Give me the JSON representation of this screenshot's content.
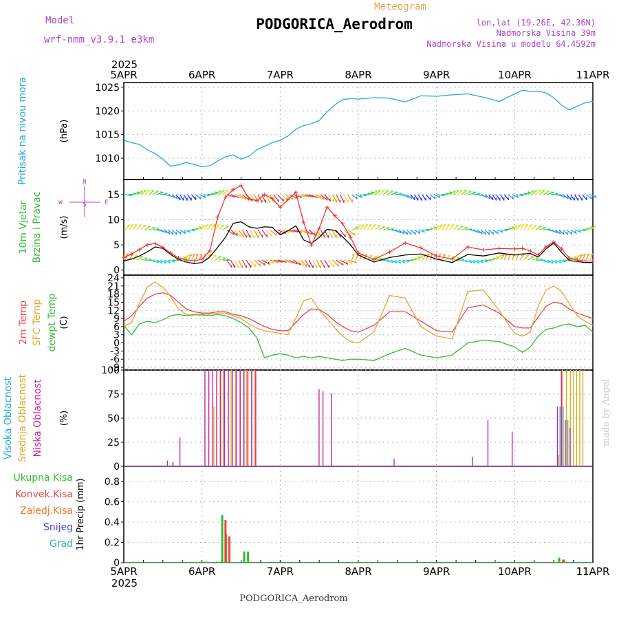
{
  "header": {
    "meteogram_label": "Meteogram",
    "station": "PODGORICA_Aerodrom",
    "model_label": "Model",
    "model_name": "wrf-nmm_v3.9.1 e3km",
    "lonlat": "lon,lat (19.26E, 42.36N)",
    "altitude": "Nadmorska Visina 39m",
    "model_altitude": "Nadmorska Visina u modelu 64.4592m"
  },
  "footer": {
    "station": "PODGORICA_Aerodrom",
    "credit": "made by Angel"
  },
  "time_axis": {
    "year": "2025",
    "ticks": [
      "5APR",
      "6APR",
      "7APR",
      "8APR",
      "9APR",
      "10APR",
      "11APR"
    ],
    "range_days": [
      0,
      6
    ]
  },
  "colors": {
    "pressure": "#22aadd",
    "wind_speed": "#000000",
    "wind_gust": "#ee3333",
    "t2m": "#ee4444",
    "sfc": "#ddaa33",
    "dew": "#33bb33",
    "high_cloud": "#22aacc",
    "mid_cloud": "#ddaa22",
    "low_cloud": "#cc2299",
    "total_precip": "#33bb33",
    "conv_precip": "#ee4444",
    "frz_precip": "#ee7722",
    "snow": "#4444dd",
    "grad": "#22bbaa",
    "wind_legend": "#aa44cc"
  },
  "chart_data": [
    {
      "type": "line",
      "panel": "pressure",
      "ylabel_lines": [
        "Pritisak na nivou mora"
      ],
      "unit": "(hPa)",
      "ylim": [
        1005.5,
        1026
      ],
      "yticks": [
        1010,
        1015,
        1020,
        1025
      ],
      "series": [
        {
          "name": "Pritisak na nivou mora",
          "x": [
            0,
            0.1,
            0.2,
            0.3,
            0.4,
            0.5,
            0.6,
            0.7,
            0.8,
            0.9,
            1.0,
            1.1,
            1.2,
            1.3,
            1.4,
            1.5,
            1.6,
            1.7,
            1.8,
            1.9,
            2.0,
            2.1,
            2.2,
            2.3,
            2.4,
            2.5,
            2.6,
            2.7,
            2.8,
            2.9,
            3.0,
            3.2,
            3.4,
            3.6,
            3.8,
            4.0,
            4.2,
            4.4,
            4.6,
            4.8,
            5.0,
            5.1,
            5.2,
            5.3,
            5.4,
            5.5,
            5.6,
            5.7,
            5.8,
            5.9,
            6.0
          ],
          "values": [
            1013.8,
            1013.3,
            1012.9,
            1011.8,
            1011.0,
            1009.8,
            1008.3,
            1008.6,
            1009.1,
            1008.7,
            1008.2,
            1008.4,
            1009.4,
            1010.3,
            1010.7,
            1009.8,
            1010.4,
            1011.8,
            1012.5,
            1013.3,
            1013.8,
            1014.7,
            1016.1,
            1016.9,
            1017.3,
            1018.0,
            1019.8,
            1021.3,
            1022.4,
            1022.6,
            1022.5,
            1022.8,
            1022.7,
            1021.9,
            1023.2,
            1023.1,
            1023.4,
            1023.6,
            1022.9,
            1022.0,
            1023.6,
            1024.4,
            1024.1,
            1024.2,
            1023.8,
            1022.8,
            1021.2,
            1020.2,
            1021.0,
            1021.7,
            1022.0
          ]
        }
      ]
    },
    {
      "type": "line",
      "panel": "wind",
      "ylabel_lines": [
        "10m Vjetar",
        "Brzina i Pravac"
      ],
      "unit": "(m/s)",
      "ylim": [
        -1,
        18
      ],
      "yticks": [
        0,
        5,
        10,
        15
      ],
      "direction_legend": {
        "north": "N",
        "south": "S",
        "west": "W",
        "east": "E"
      },
      "barb_rows": [
        15,
        8,
        2
      ],
      "series": [
        {
          "name": "Brzina vjetra",
          "x": [
            0,
            0.1,
            0.2,
            0.3,
            0.4,
            0.5,
            0.6,
            0.7,
            0.8,
            0.9,
            1.0,
            1.1,
            1.2,
            1.3,
            1.4,
            1.5,
            1.6,
            1.7,
            1.8,
            1.9,
            2.0,
            2.1,
            2.2,
            2.3,
            2.4,
            2.5,
            2.6,
            2.7,
            2.8,
            2.9,
            3.0,
            3.2,
            3.4,
            3.6,
            3.8,
            4.0,
            4.2,
            4.4,
            4.6,
            4.8,
            5.0,
            5.1,
            5.2,
            5.3,
            5.4,
            5.5,
            5.6,
            5.7,
            5.8,
            5.9,
            6.0
          ],
          "values": [
            1.8,
            2.2,
            2.8,
            3.6,
            4.6,
            4.3,
            3.1,
            2.1,
            1.6,
            1.3,
            1.5,
            2.6,
            4.5,
            6.5,
            9.3,
            9.6,
            8.6,
            8.3,
            8.6,
            8.5,
            7.0,
            7.8,
            8.8,
            6.0,
            5.3,
            6.5,
            8.1,
            7.9,
            6.6,
            5.0,
            3.0,
            1.6,
            2.5,
            3.0,
            3.2,
            2.2,
            1.5,
            3.1,
            2.8,
            3.4,
            3.0,
            3.2,
            3.3,
            2.6,
            4.2,
            5.4,
            3.5,
            1.9,
            1.7,
            1.5,
            1.5
          ]
        },
        {
          "name": "Udari vjetra",
          "x": [
            0,
            0.1,
            0.2,
            0.3,
            0.4,
            0.5,
            0.6,
            0.7,
            0.8,
            0.9,
            1.0,
            1.1,
            1.2,
            1.3,
            1.4,
            1.5,
            1.6,
            1.7,
            1.8,
            1.9,
            2.0,
            2.1,
            2.2,
            2.3,
            2.4,
            2.5,
            2.6,
            2.7,
            2.8,
            2.9,
            3.0,
            3.2,
            3.4,
            3.6,
            3.8,
            4.0,
            4.2,
            4.4,
            4.6,
            4.8,
            5.0,
            5.1,
            5.2,
            5.3,
            5.4,
            5.5,
            5.6,
            5.7,
            5.8,
            5.9,
            6.0
          ],
          "values": [
            2.5,
            3.2,
            4.1,
            5.0,
            5.3,
            4.5,
            3.4,
            2.4,
            2.0,
            1.8,
            2.2,
            3.8,
            10.5,
            14.5,
            16.0,
            16.8,
            14.2,
            13.8,
            15.0,
            14.2,
            12.5,
            14.0,
            15.5,
            9.5,
            5.0,
            8.3,
            12.5,
            10.8,
            9.2,
            6.5,
            3.4,
            2.1,
            3.6,
            5.4,
            4.4,
            2.8,
            2.2,
            4.6,
            4.0,
            4.3,
            4.2,
            4.3,
            3.8,
            3.0,
            4.6,
            5.6,
            4.2,
            2.4,
            2.0,
            1.8,
            1.8
          ]
        }
      ]
    },
    {
      "type": "line",
      "panel": "temperature",
      "ylabel_lines": [
        "2m Temp",
        "SFC Temp",
        "dewpt Temp"
      ],
      "unit": "(C)",
      "ylim": [
        -10,
        25
      ],
      "yticks": [
        -9,
        -6,
        -3,
        0,
        3,
        6,
        9,
        12,
        15,
        18,
        21,
        24
      ],
      "series": [
        {
          "name": "2m Temp",
          "x": [
            0,
            0.1,
            0.2,
            0.3,
            0.4,
            0.5,
            0.6,
            0.7,
            0.8,
            0.9,
            1.0,
            1.1,
            1.2,
            1.3,
            1.4,
            1.5,
            1.6,
            1.7,
            1.8,
            1.9,
            2.0,
            2.1,
            2.2,
            2.3,
            2.4,
            2.5,
            2.6,
            2.7,
            2.8,
            2.9,
            3.0,
            3.2,
            3.4,
            3.6,
            3.8,
            4.0,
            4.2,
            4.4,
            4.6,
            4.8,
            5.0,
            5.1,
            5.2,
            5.3,
            5.4,
            5.5,
            5.6,
            5.7,
            5.8,
            5.9,
            6.0
          ],
          "values": [
            8.0,
            10.0,
            13.5,
            16.5,
            18.0,
            18.5,
            17.5,
            15.0,
            12.5,
            11.5,
            11.0,
            11.0,
            11.5,
            11.5,
            10.5,
            10.0,
            9.0,
            7.5,
            6.0,
            5.0,
            4.5,
            4.5,
            7.5,
            10.5,
            12.5,
            12.3,
            10.5,
            8.0,
            6.0,
            4.5,
            4.0,
            6.5,
            11.5,
            11.5,
            8.0,
            4.5,
            4.0,
            13.0,
            14.0,
            11.0,
            6.0,
            5.5,
            5.5,
            9.5,
            13.5,
            15.0,
            14.5,
            12.5,
            11.0,
            10.0,
            9.0
          ]
        },
        {
          "name": "SFC Temp",
          "x": [
            0,
            0.1,
            0.2,
            0.3,
            0.4,
            0.5,
            0.6,
            0.7,
            0.8,
            0.9,
            1.0,
            1.1,
            1.2,
            1.3,
            1.4,
            1.5,
            1.6,
            1.7,
            1.8,
            1.9,
            2.0,
            2.1,
            2.2,
            2.3,
            2.4,
            2.5,
            2.6,
            2.7,
            2.8,
            2.9,
            3.0,
            3.2,
            3.4,
            3.6,
            3.8,
            4.0,
            4.2,
            4.4,
            4.6,
            4.8,
            5.0,
            5.1,
            5.2,
            5.3,
            5.4,
            5.5,
            5.6,
            5.7,
            5.8,
            5.9,
            6.0
          ],
          "values": [
            6.0,
            7.5,
            14.5,
            20.5,
            22.5,
            20.5,
            17.0,
            12.5,
            10.5,
            10.0,
            10.0,
            10.5,
            11.0,
            11.0,
            10.0,
            9.0,
            7.0,
            5.5,
            4.5,
            4.0,
            3.5,
            3.0,
            9.0,
            15.5,
            16.5,
            12.0,
            9.0,
            5.5,
            2.5,
            0.5,
            0.0,
            4.0,
            17.5,
            16.5,
            6.0,
            2.5,
            1.5,
            19.0,
            19.5,
            12.0,
            3.5,
            2.5,
            4.0,
            13.5,
            19.5,
            21.0,
            19.0,
            14.5,
            10.0,
            8.0,
            6.5
          ]
        },
        {
          "name": "dewpt Temp",
          "x": [
            0,
            0.1,
            0.2,
            0.3,
            0.4,
            0.5,
            0.6,
            0.7,
            0.8,
            0.9,
            1.0,
            1.1,
            1.2,
            1.3,
            1.4,
            1.5,
            1.6,
            1.7,
            1.8,
            1.9,
            2.0,
            2.1,
            2.2,
            2.3,
            2.4,
            2.5,
            2.6,
            2.7,
            2.8,
            2.9,
            3.0,
            3.2,
            3.4,
            3.6,
            3.8,
            4.0,
            4.2,
            4.4,
            4.6,
            4.8,
            5.0,
            5.1,
            5.2,
            5.3,
            5.4,
            5.5,
            5.6,
            5.7,
            5.8,
            5.9,
            6.0
          ],
          "values": [
            6.5,
            3.0,
            7.0,
            8.0,
            7.5,
            8.5,
            10.0,
            10.5,
            10.0,
            10.5,
            10.5,
            10.0,
            10.5,
            10.0,
            9.0,
            7.5,
            5.5,
            2.0,
            -5.5,
            -4.5,
            -4.0,
            -4.5,
            -5.5,
            -5.0,
            -5.5,
            -5.0,
            -5.5,
            -6.0,
            -6.5,
            -6.0,
            -6.0,
            -6.5,
            -4.0,
            -2.0,
            -4.5,
            -5.5,
            -4.5,
            0.0,
            1.0,
            0.5,
            -1.5,
            -3.5,
            -1.5,
            2.5,
            5.0,
            5.5,
            6.5,
            7.0,
            6.0,
            6.5,
            4.0
          ]
        }
      ]
    },
    {
      "type": "bar",
      "panel": "clouds",
      "ylabel_lines": [
        "Visoka Oblacnost",
        "Srednja Oblacnost",
        "Niska Oblacnost"
      ],
      "unit": "(%)",
      "ylim": [
        0,
        100
      ],
      "yticks": [
        0,
        25,
        50,
        75,
        100
      ],
      "series": [
        {
          "name": "Visoka Oblacnost",
          "x": [
            5.58,
            5.62,
            5.68
          ],
          "values": [
            62,
            62,
            48
          ]
        },
        {
          "name": "Srednja Oblacnost",
          "x": [
            0.62,
            1.14,
            1.22,
            1.26,
            1.36,
            1.42,
            1.48,
            1.52,
            1.56,
            1.62,
            1.66,
            5.55,
            5.6,
            5.65,
            5.7,
            5.74,
            5.78,
            5.82,
            5.86
          ],
          "values": [
            5,
            62,
            100,
            100,
            100,
            100,
            100,
            100,
            100,
            100,
            100,
            12,
            100,
            100,
            100,
            100,
            100,
            100,
            100
          ]
        },
        {
          "name": "Niska Oblacnost",
          "x": [
            0.57,
            0.64,
            0.73,
            1.05,
            1.1,
            1.15,
            1.2,
            1.25,
            1.3,
            1.35,
            1.4,
            1.45,
            1.5,
            1.55,
            1.6,
            1.65,
            1.7,
            2.51,
            2.56,
            2.67,
            3.47,
            4.47,
            4.67,
            4.98,
            5.56,
            5.61,
            5.66,
            5.72
          ],
          "values": [
            6,
            4,
            30,
            100,
            100,
            100,
            100,
            100,
            100,
            100,
            100,
            100,
            100,
            100,
            100,
            100,
            100,
            80,
            78,
            76,
            8,
            10,
            48,
            36,
            62,
            100,
            48,
            40
          ]
        }
      ]
    },
    {
      "type": "bar",
      "panel": "precipitation",
      "ylabel_lines": [
        "Ukupna Kisa",
        "Konvek.Kisa",
        "Zaledj.Kisa",
        "Snijeg",
        "Grad"
      ],
      "unit": "1hr Precip (mm)",
      "ylim": [
        0,
        0.95
      ],
      "yticks": [
        0,
        0.2,
        0.4,
        0.6,
        0.8
      ],
      "series": [
        {
          "name": "Ukupna Kisa",
          "x": [
            1.06,
            1.2,
            1.27,
            1.32,
            1.55,
            1.6,
            5.58,
            5.64
          ],
          "values": [
            0.01,
            0.01,
            0.47,
            0.28,
            0.11,
            0.11,
            0.05,
            0.03
          ]
        },
        {
          "name": "Konvek.Kisa",
          "x": [
            1.29,
            1.34,
            5.61
          ],
          "values": [
            0.42,
            0.26,
            0.03
          ]
        },
        {
          "name": "Zaledj.Kisa",
          "x": [],
          "values": []
        },
        {
          "name": "Snijeg",
          "x": [],
          "values": []
        },
        {
          "name": "Grad",
          "x": [],
          "values": []
        }
      ]
    }
  ]
}
